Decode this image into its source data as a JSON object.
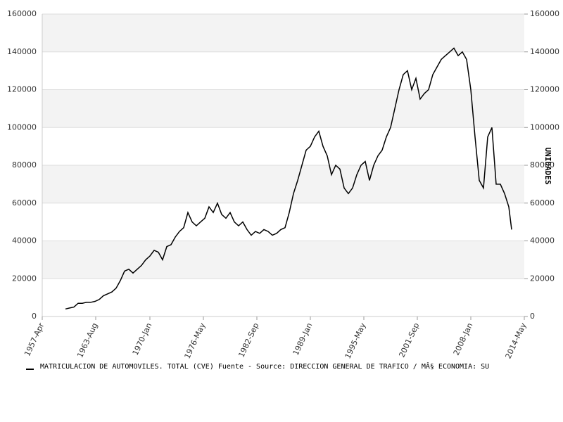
{
  "chart_data": {
    "type": "line",
    "y_label": "UNIDADES",
    "xlim": [
      "1957-Apr",
      "2014-May"
    ],
    "xticks": [
      "1957-Apr",
      "1963-Aug",
      "1970-Jan",
      "1976-May",
      "1982-Sep",
      "1989-Jan",
      "1995-May",
      "2001-Sep",
      "2008-Jan",
      "2014-May"
    ],
    "ylim": [
      0,
      160000
    ],
    "yticks": [
      0,
      20000,
      40000,
      60000,
      80000,
      100000,
      120000,
      140000,
      160000
    ],
    "y2lim": [
      0,
      160000
    ],
    "y2ticks": [
      0,
      20000,
      40000,
      60000,
      80000,
      100000,
      120000,
      140000,
      160000
    ],
    "grid": true,
    "x": [
      "1960-Jan",
      "1960-Jul",
      "1961-Jan",
      "1961-Jul",
      "1962-Jan",
      "1962-Jul",
      "1963-Jan",
      "1963-Jul",
      "1964-Jan",
      "1964-Jul",
      "1965-Jan",
      "1965-Jul",
      "1966-Jan",
      "1966-Jul",
      "1967-Jan",
      "1967-Jul",
      "1968-Jan",
      "1968-Jul",
      "1969-Jan",
      "1969-Jul",
      "1970-Jan",
      "1970-Jul",
      "1971-Jan",
      "1971-Jul",
      "1972-Jan",
      "1972-Jul",
      "1973-Jan",
      "1973-Jul",
      "1974-Jan",
      "1974-Jul",
      "1975-Jan",
      "1975-Jul",
      "1976-Jan",
      "1976-Jul",
      "1977-Jan",
      "1977-Jul",
      "1978-Jan",
      "1978-Jul",
      "1979-Jan",
      "1979-Jul",
      "1980-Jan",
      "1980-Jul",
      "1981-Jan",
      "1981-Jul",
      "1982-Jan",
      "1982-Jul",
      "1983-Jan",
      "1983-Jul",
      "1984-Jan",
      "1984-Jul",
      "1985-Jan",
      "1985-Jul",
      "1986-Jan",
      "1986-Jul",
      "1987-Jan",
      "1987-Jul",
      "1988-Jan",
      "1988-Jul",
      "1989-Jan",
      "1989-Jul",
      "1990-Jan",
      "1990-Jul",
      "1991-Jan",
      "1991-Jul",
      "1992-Jan",
      "1992-Jul",
      "1993-Jan",
      "1993-Jul",
      "1994-Jan",
      "1994-Jul",
      "1995-Jan",
      "1995-Jul",
      "1996-Jan",
      "1996-Jul",
      "1997-Jan",
      "1997-Jul",
      "1998-Jan",
      "1998-Jul",
      "1999-Jan",
      "1999-Jul",
      "2000-Jan",
      "2000-Jul",
      "2001-Jan",
      "2001-Jul",
      "2002-Jan",
      "2002-Jul",
      "2003-Jan",
      "2003-Jul",
      "2004-Jan",
      "2004-Jul",
      "2005-Jan",
      "2005-Jul",
      "2006-Jan",
      "2006-Jul",
      "2007-Jan",
      "2007-Jul",
      "2008-Jan",
      "2008-Jul",
      "2009-Jan",
      "2009-Jul",
      "2010-Jan",
      "2010-Jul",
      "2011-Jan",
      "2011-Jul",
      "2012-Jan",
      "2012-Jul",
      "2012-Nov"
    ],
    "series": [
      {
        "name": "MATRICULACION DE AUTOMOVILES. TOTAL (CVE)  Fuente - Source: DIRECCION GENERAL DE TRAFICO / MÂ§ ECONOMIA: SU",
        "color": "#000000",
        "values": [
          4000,
          4500,
          5000,
          7000,
          7000,
          7500,
          7500,
          8000,
          9000,
          11000,
          12000,
          13000,
          15000,
          19000,
          24000,
          25000,
          23000,
          25000,
          27000,
          30000,
          32000,
          35000,
          34000,
          30000,
          37000,
          38000,
          42000,
          45000,
          47000,
          55000,
          50000,
          48000,
          50000,
          52000,
          58000,
          55000,
          60000,
          54000,
          52000,
          55000,
          50000,
          48000,
          50000,
          46000,
          43000,
          45000,
          44000,
          46000,
          45000,
          43000,
          44000,
          46000,
          47000,
          55000,
          65000,
          72000,
          80000,
          88000,
          90000,
          95000,
          98000,
          90000,
          85000,
          75000,
          80000,
          78000,
          68000,
          65000,
          68000,
          75000,
          80000,
          82000,
          72000,
          80000,
          85000,
          88000,
          95000,
          100000,
          110000,
          120000,
          128000,
          130000,
          120000,
          126000,
          115000,
          118000,
          120000,
          128000,
          132000,
          136000,
          138000,
          140000,
          142000,
          138000,
          140000,
          136000,
          120000,
          95000,
          72000,
          68000,
          95000,
          100000,
          70000,
          70000,
          65000,
          58000,
          46000
        ]
      }
    ]
  }
}
